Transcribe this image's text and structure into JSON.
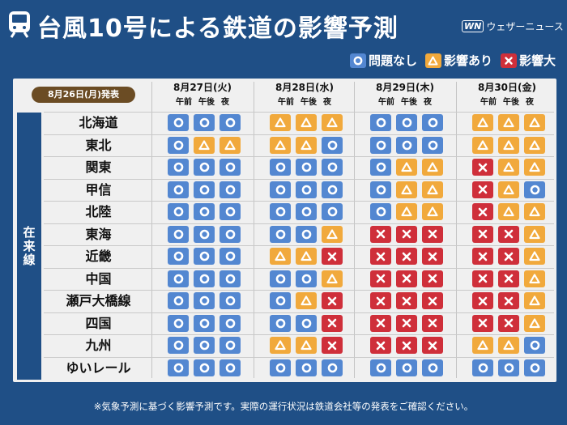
{
  "header": {
    "title": "台風10号による鉄道の影響予測",
    "brand_logo": "WN",
    "brand_name": "ウェザーニュース"
  },
  "legend": {
    "ok": "問題なし",
    "warn": "影響あり",
    "big": "影響大"
  },
  "colors": {
    "background": "#1f4f86",
    "ok": "#5387d1",
    "warn": "#f1a93c",
    "big": "#cf2f3a",
    "badge": "#6b4c24"
  },
  "table": {
    "announced": "8月26日(月)発表",
    "category": "在来線",
    "periods": [
      "午前",
      "午後",
      "夜"
    ],
    "days": [
      "8月27日(火)",
      "8月28日(水)",
      "8月29日(木)",
      "8月30日(金)"
    ],
    "rows": [
      {
        "name": "北海道",
        "status": [
          [
            "ok",
            "ok",
            "ok"
          ],
          [
            "warn",
            "warn",
            "warn"
          ],
          [
            "ok",
            "ok",
            "ok"
          ],
          [
            "warn",
            "warn",
            "warn"
          ]
        ]
      },
      {
        "name": "東北",
        "status": [
          [
            "ok",
            "warn",
            "warn"
          ],
          [
            "warn",
            "warn",
            "ok"
          ],
          [
            "ok",
            "ok",
            "ok"
          ],
          [
            "warn",
            "warn",
            "warn"
          ]
        ]
      },
      {
        "name": "関東",
        "status": [
          [
            "ok",
            "ok",
            "ok"
          ],
          [
            "ok",
            "ok",
            "ok"
          ],
          [
            "ok",
            "warn",
            "warn"
          ],
          [
            "big",
            "warn",
            "warn"
          ]
        ]
      },
      {
        "name": "甲信",
        "status": [
          [
            "ok",
            "ok",
            "ok"
          ],
          [
            "ok",
            "ok",
            "ok"
          ],
          [
            "ok",
            "warn",
            "warn"
          ],
          [
            "big",
            "warn",
            "ok"
          ]
        ]
      },
      {
        "name": "北陸",
        "status": [
          [
            "ok",
            "ok",
            "ok"
          ],
          [
            "ok",
            "ok",
            "ok"
          ],
          [
            "ok",
            "warn",
            "warn"
          ],
          [
            "big",
            "warn",
            "warn"
          ]
        ]
      },
      {
        "name": "東海",
        "status": [
          [
            "ok",
            "ok",
            "ok"
          ],
          [
            "ok",
            "ok",
            "warn"
          ],
          [
            "big",
            "big",
            "big"
          ],
          [
            "big",
            "big",
            "warn"
          ]
        ]
      },
      {
        "name": "近畿",
        "status": [
          [
            "ok",
            "ok",
            "ok"
          ],
          [
            "warn",
            "warn",
            "big"
          ],
          [
            "big",
            "big",
            "big"
          ],
          [
            "big",
            "big",
            "warn"
          ]
        ]
      },
      {
        "name": "中国",
        "status": [
          [
            "ok",
            "ok",
            "ok"
          ],
          [
            "ok",
            "ok",
            "warn"
          ],
          [
            "big",
            "big",
            "big"
          ],
          [
            "big",
            "big",
            "warn"
          ]
        ]
      },
      {
        "name": "瀬戸大橋線",
        "status": [
          [
            "ok",
            "ok",
            "ok"
          ],
          [
            "ok",
            "warn",
            "big"
          ],
          [
            "big",
            "big",
            "big"
          ],
          [
            "big",
            "big",
            "warn"
          ]
        ]
      },
      {
        "name": "四国",
        "status": [
          [
            "ok",
            "ok",
            "ok"
          ],
          [
            "ok",
            "ok",
            "big"
          ],
          [
            "big",
            "big",
            "big"
          ],
          [
            "big",
            "big",
            "warn"
          ]
        ]
      },
      {
        "name": "九州",
        "status": [
          [
            "ok",
            "ok",
            "ok"
          ],
          [
            "warn",
            "warn",
            "big"
          ],
          [
            "big",
            "big",
            "big"
          ],
          [
            "warn",
            "warn",
            "ok"
          ]
        ]
      },
      {
        "name": "ゆいレール",
        "status": [
          [
            "ok",
            "ok",
            "ok"
          ],
          [
            "ok",
            "ok",
            "ok"
          ],
          [
            "ok",
            "ok",
            "ok"
          ],
          [
            "ok",
            "ok",
            "ok"
          ]
        ]
      }
    ]
  },
  "footer": {
    "note": "※気象予測に基づく影響予測です。実際の運行状況は鉄道会社等の発表をご確認ください。"
  }
}
